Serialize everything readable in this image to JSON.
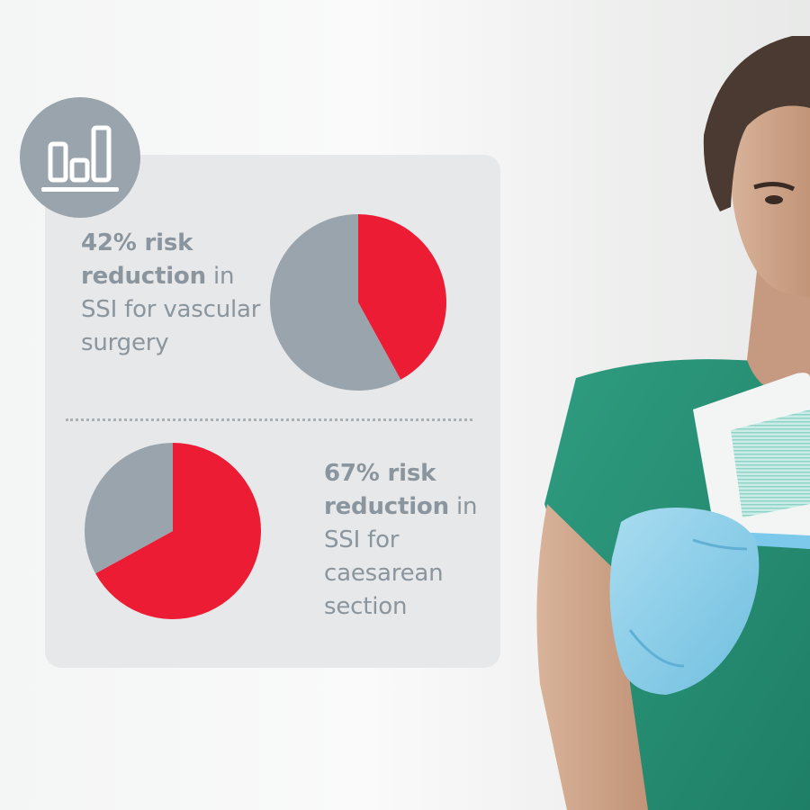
{
  "colors": {
    "highlight": "#ec1c35",
    "remainder": "#9aa4ac",
    "text": "#8b959d",
    "card": "#e6e8e9"
  },
  "icons": {
    "badge": "bar-chart-icon"
  },
  "stats": [
    {
      "bold": "42% risk reduction",
      "rest": " in SSI for vascular surgery"
    },
    {
      "bold": "67% risk reduction",
      "rest": " in SSI for caesarean section"
    }
  ],
  "chart_data": [
    {
      "type": "pie",
      "slices": [
        {
          "value": 42,
          "color": "#ec1c35"
        },
        {
          "value": 58,
          "color": "#9aa4ac"
        }
      ],
      "start": "top",
      "direction": "clockwise"
    },
    {
      "type": "pie",
      "slices": [
        {
          "value": 67,
          "color": "#ec1c35"
        },
        {
          "value": 33,
          "color": "#9aa4ac"
        }
      ],
      "start": "top",
      "direction": "clockwise"
    }
  ]
}
